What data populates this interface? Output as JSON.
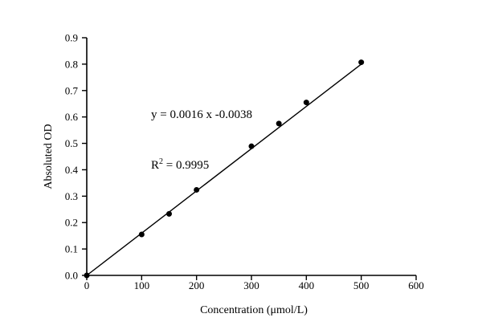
{
  "chart_data": {
    "type": "scatter",
    "title": "",
    "xlabel": "Concentration (μmol/L)",
    "ylabel": "Absoluted OD",
    "xlim": [
      0,
      600
    ],
    "ylim": [
      0,
      0.9
    ],
    "xticks": [
      "0",
      "100",
      "200",
      "300",
      "400",
      "500",
      "600"
    ],
    "yticks": [
      "0.0",
      "0.1",
      "0.2",
      "0.3",
      "0.4",
      "0.5",
      "0.6",
      "0.7",
      "0.8",
      "0.9"
    ],
    "grid": false,
    "legend": "none",
    "series": [
      {
        "name": "linear-fit-line",
        "kind": "line",
        "color": "#000000",
        "points": [
          [
            0,
            0.0
          ],
          [
            500,
            0.8
          ]
        ]
      },
      {
        "name": "calibration-points",
        "kind": "scatter",
        "marker": "filled-circle",
        "color": "#000000",
        "points": [
          [
            0,
            0.0
          ],
          [
            100,
            0.155
          ],
          [
            150,
            0.233
          ],
          [
            200,
            0.324
          ],
          [
            300,
            0.489
          ],
          [
            350,
            0.575
          ],
          [
            400,
            0.655
          ],
          [
            500,
            0.807
          ]
        ]
      }
    ],
    "annotation": {
      "equation": "y = 0.0016 x -0.0038",
      "r2_base": "R",
      "r2_sup": "2",
      "r2_rest": " = 0.9995"
    },
    "colors": {
      "foreground": "#000000",
      "background": "#ffffff"
    }
  }
}
